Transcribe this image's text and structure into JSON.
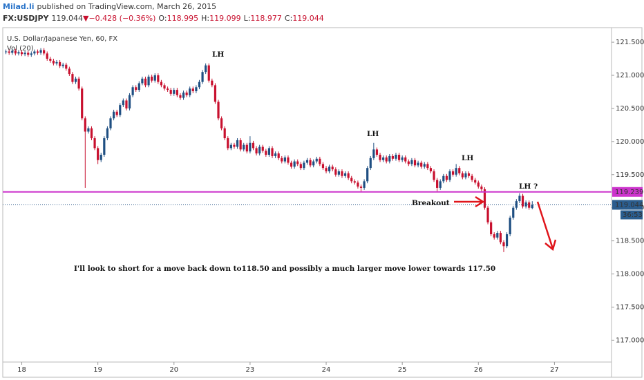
{
  "header": {
    "author": "Milad.li",
    "published": "published on TradingView.com, March 26, 2015",
    "symbol": "FX:USDJPY",
    "change": "−0.428 (−0.36%)",
    "ohlc_labels": [
      "O:",
      "H:",
      "L:",
      "C:"
    ]
  },
  "chart_data": {
    "type": "candlestick",
    "title": "U.S. Dollar/Japanese Yen, 60, FX",
    "volume_label": "Vol (20)",
    "up_color": "#1f4f82",
    "down_color": "#c8102e",
    "ylim": [
      116.67,
      121.72
    ],
    "yticks": [
      {
        "value": 117,
        "label": "117.000"
      },
      {
        "value": 117.5,
        "label": "117.500"
      },
      {
        "value": 118,
        "label": "118.000"
      },
      {
        "value": 118.5,
        "label": "118.500"
      },
      {
        "value": 119,
        "label": "119.000"
      },
      {
        "value": 119.5,
        "label": "119.500"
      },
      {
        "value": 120,
        "label": "120.000"
      },
      {
        "value": 120.5,
        "label": "120.500"
      },
      {
        "value": 121,
        "label": "121.000"
      },
      {
        "value": 121.5,
        "label": "121.500"
      }
    ],
    "xlim": [
      -1,
      191
    ],
    "xticks": [
      {
        "value": 5,
        "label": "18"
      },
      {
        "value": 29,
        "label": "19"
      },
      {
        "value": 53,
        "label": "20"
      },
      {
        "value": 77,
        "label": "23"
      },
      {
        "value": 101,
        "label": "24"
      },
      {
        "value": 125,
        "label": "25"
      },
      {
        "value": 149,
        "label": "26"
      },
      {
        "value": 173,
        "label": "27"
      }
    ],
    "levels": [
      {
        "value": 119.239,
        "color": "#cc33cc"
      }
    ],
    "timer": "36:53",
    "annotations": [
      "LH",
      "LH",
      "LH",
      "LH ?",
      "Breakout",
      "I'll look to short for a move back down to118.50 and possibly a much larger move lower towards 117.50"
    ],
    "candles": [
      [
        121.35,
        121.39,
        121.32,
        121.36
      ],
      [
        121.36,
        121.39,
        121.31,
        121.34
      ],
      [
        121.34,
        121.4,
        121.31,
        121.37
      ],
      [
        121.37,
        121.4,
        121.3,
        121.33
      ],
      [
        121.33,
        121.38,
        121.3,
        121.35
      ],
      [
        121.35,
        121.38,
        121.29,
        121.32
      ],
      [
        121.32,
        121.37,
        121.29,
        121.34
      ],
      [
        121.34,
        121.37,
        121.28,
        121.31
      ],
      [
        121.31,
        121.36,
        121.28,
        121.33
      ],
      [
        121.33,
        121.39,
        121.3,
        121.36
      ],
      [
        121.36,
        121.39,
        121.31,
        121.34
      ],
      [
        121.34,
        121.41,
        121.31,
        121.38
      ],
      [
        121.38,
        121.41,
        121.3,
        121.33
      ],
      [
        121.33,
        121.36,
        121.22,
        121.25
      ],
      [
        121.25,
        121.28,
        121.19,
        121.22
      ],
      [
        121.22,
        121.25,
        121.15,
        121.18
      ],
      [
        121.18,
        121.23,
        121.15,
        121.2
      ],
      [
        121.2,
        121.23,
        121.11,
        121.14
      ],
      [
        121.14,
        121.19,
        121.11,
        121.16
      ],
      [
        121.16,
        121.19,
        121.07,
        121.1
      ],
      [
        121.1,
        121.13,
        120.99,
        121.02
      ],
      [
        121.02,
        121.05,
        120.87,
        120.9
      ],
      [
        120.9,
        120.98,
        120.87,
        120.95
      ],
      [
        120.95,
        120.98,
        120.77,
        120.8
      ],
      [
        120.8,
        120.83,
        120.32,
        120.35
      ],
      [
        120.35,
        120.38,
        119.3,
        120.15
      ],
      [
        120.15,
        120.23,
        120.12,
        120.2
      ],
      [
        120.2,
        120.23,
        120.02,
        120.05
      ],
      [
        120.05,
        120.08,
        119.87,
        119.9
      ],
      [
        119.9,
        119.93,
        119.66,
        119.72
      ],
      [
        119.72,
        119.83,
        119.69,
        119.8
      ],
      [
        119.8,
        120.08,
        119.77,
        120.05
      ],
      [
        120.05,
        120.23,
        120.02,
        120.2
      ],
      [
        120.2,
        120.38,
        120.17,
        120.35
      ],
      [
        120.35,
        120.48,
        120.32,
        120.45
      ],
      [
        120.45,
        120.48,
        120.37,
        120.4
      ],
      [
        120.4,
        120.58,
        120.37,
        120.55
      ],
      [
        120.55,
        120.65,
        120.52,
        120.62
      ],
      [
        120.62,
        120.65,
        120.47,
        120.5
      ],
      [
        120.5,
        120.73,
        120.47,
        120.7
      ],
      [
        120.7,
        120.85,
        120.67,
        120.82
      ],
      [
        120.82,
        120.85,
        120.75,
        120.78
      ],
      [
        120.78,
        120.91,
        120.75,
        120.88
      ],
      [
        120.88,
        120.98,
        120.85,
        120.95
      ],
      [
        120.95,
        120.98,
        120.82,
        120.85
      ],
      [
        120.85,
        121.01,
        120.82,
        120.98
      ],
      [
        120.98,
        121.01,
        120.89,
        120.92
      ],
      [
        120.92,
        121.03,
        120.89,
        121.0
      ],
      [
        121.0,
        121.03,
        120.87,
        120.9
      ],
      [
        120.9,
        120.93,
        120.82,
        120.85
      ],
      [
        120.85,
        120.88,
        120.77,
        120.8
      ],
      [
        120.8,
        120.83,
        120.75,
        120.78
      ],
      [
        120.78,
        120.81,
        120.69,
        120.72
      ],
      [
        120.72,
        120.81,
        120.69,
        120.78
      ],
      [
        120.78,
        120.81,
        120.67,
        120.7
      ],
      [
        120.7,
        120.73,
        120.63,
        120.66
      ],
      [
        120.66,
        120.77,
        120.63,
        120.74
      ],
      [
        120.74,
        120.77,
        120.67,
        120.7
      ],
      [
        120.7,
        120.83,
        120.67,
        120.8
      ],
      [
        120.8,
        120.83,
        120.73,
        120.76
      ],
      [
        120.76,
        120.85,
        120.73,
        120.82
      ],
      [
        120.82,
        120.93,
        120.79,
        120.9
      ],
      [
        120.9,
        121.08,
        120.87,
        121.05
      ],
      [
        121.05,
        121.18,
        121.02,
        121.15
      ],
      [
        121.15,
        121.18,
        120.89,
        120.92
      ],
      [
        120.92,
        120.95,
        120.82,
        120.85
      ],
      [
        120.85,
        120.88,
        120.57,
        120.6
      ],
      [
        120.6,
        120.63,
        120.32,
        120.35
      ],
      [
        120.35,
        120.38,
        120.17,
        120.2
      ],
      [
        120.2,
        120.23,
        120.02,
        120.05
      ],
      [
        120.05,
        120.08,
        119.87,
        119.9
      ],
      [
        119.9,
        119.98,
        119.87,
        119.95
      ],
      [
        119.95,
        119.98,
        119.89,
        119.92
      ],
      [
        119.92,
        120.05,
        119.89,
        120.02
      ],
      [
        120.02,
        120.05,
        119.85,
        119.88
      ],
      [
        119.88,
        119.98,
        119.85,
        119.95
      ],
      [
        119.95,
        119.98,
        119.82,
        119.85
      ],
      [
        119.85,
        120.08,
        119.82,
        119.98
      ],
      [
        119.98,
        120.01,
        119.87,
        119.9
      ],
      [
        119.9,
        119.93,
        119.79,
        119.82
      ],
      [
        119.82,
        119.95,
        119.79,
        119.92
      ],
      [
        119.92,
        119.95,
        119.83,
        119.86
      ],
      [
        119.86,
        119.89,
        119.77,
        119.8
      ],
      [
        119.8,
        119.93,
        119.77,
        119.9
      ],
      [
        119.9,
        119.93,
        119.75,
        119.78
      ],
      [
        119.78,
        119.85,
        119.75,
        119.82
      ],
      [
        119.82,
        119.85,
        119.72,
        119.75
      ],
      [
        119.75,
        119.78,
        119.67,
        119.7
      ],
      [
        119.7,
        119.79,
        119.67,
        119.76
      ],
      [
        119.76,
        119.79,
        119.65,
        119.68
      ],
      [
        119.68,
        119.71,
        119.59,
        119.62
      ],
      [
        119.62,
        119.73,
        119.59,
        119.7
      ],
      [
        119.7,
        119.73,
        119.63,
        119.66
      ],
      [
        119.66,
        119.69,
        119.57,
        119.6
      ],
      [
        119.6,
        119.71,
        119.57,
        119.68
      ],
      [
        119.68,
        119.75,
        119.65,
        119.72
      ],
      [
        119.72,
        119.75,
        119.61,
        119.64
      ],
      [
        119.64,
        119.73,
        119.61,
        119.7
      ],
      [
        119.7,
        119.77,
        119.67,
        119.74
      ],
      [
        119.74,
        119.77,
        119.63,
        119.66
      ],
      [
        119.66,
        119.69,
        119.57,
        119.6
      ],
      [
        119.6,
        119.63,
        119.52,
        119.55
      ],
      [
        119.55,
        119.65,
        119.52,
        119.62
      ],
      [
        119.62,
        119.65,
        119.55,
        119.58
      ],
      [
        119.58,
        119.61,
        119.47,
        119.5
      ],
      [
        119.5,
        119.58,
        119.47,
        119.55
      ],
      [
        119.55,
        119.58,
        119.45,
        119.48
      ],
      [
        119.48,
        119.55,
        119.45,
        119.52
      ],
      [
        119.52,
        119.55,
        119.42,
        119.45
      ],
      [
        119.45,
        119.48,
        119.37,
        119.4
      ],
      [
        119.4,
        119.43,
        119.35,
        119.38
      ],
      [
        119.38,
        119.41,
        119.29,
        119.32
      ],
      [
        119.32,
        119.35,
        119.24,
        119.3
      ],
      [
        119.3,
        119.43,
        119.27,
        119.4
      ],
      [
        119.4,
        119.63,
        119.37,
        119.6
      ],
      [
        119.6,
        119.78,
        119.57,
        119.75
      ],
      [
        119.75,
        119.98,
        119.72,
        119.88
      ],
      [
        119.88,
        119.91,
        119.77,
        119.8
      ],
      [
        119.8,
        119.83,
        119.69,
        119.72
      ],
      [
        119.72,
        119.79,
        119.69,
        119.76
      ],
      [
        119.76,
        119.79,
        119.67,
        119.7
      ],
      [
        119.7,
        119.81,
        119.67,
        119.78
      ],
      [
        119.78,
        119.81,
        119.71,
        119.74
      ],
      [
        119.74,
        119.83,
        119.71,
        119.8
      ],
      [
        119.8,
        119.83,
        119.69,
        119.72
      ],
      [
        119.72,
        119.79,
        119.69,
        119.76
      ],
      [
        119.76,
        119.79,
        119.67,
        119.7
      ],
      [
        119.7,
        119.73,
        119.63,
        119.66
      ],
      [
        119.66,
        119.75,
        119.63,
        119.72
      ],
      [
        119.72,
        119.75,
        119.61,
        119.64
      ],
      [
        119.64,
        119.71,
        119.61,
        119.68
      ],
      [
        119.68,
        119.71,
        119.59,
        119.62
      ],
      [
        119.62,
        119.69,
        119.59,
        119.66
      ],
      [
        119.66,
        119.69,
        119.57,
        119.6
      ],
      [
        119.6,
        119.63,
        119.52,
        119.55
      ],
      [
        119.55,
        119.58,
        119.39,
        119.42
      ],
      [
        119.42,
        119.45,
        119.25,
        119.3
      ],
      [
        119.3,
        119.43,
        119.27,
        119.4
      ],
      [
        119.4,
        119.51,
        119.37,
        119.48
      ],
      [
        119.48,
        119.51,
        119.39,
        119.42
      ],
      [
        119.42,
        119.58,
        119.39,
        119.55
      ],
      [
        119.55,
        119.58,
        119.47,
        119.5
      ],
      [
        119.5,
        119.66,
        119.47,
        119.6
      ],
      [
        119.6,
        119.63,
        119.49,
        119.52
      ],
      [
        119.52,
        119.55,
        119.43,
        119.46
      ],
      [
        119.46,
        119.55,
        119.43,
        119.52
      ],
      [
        119.52,
        119.55,
        119.45,
        119.48
      ],
      [
        119.48,
        119.51,
        119.39,
        119.42
      ],
      [
        119.42,
        119.45,
        119.35,
        119.38
      ],
      [
        119.38,
        119.41,
        119.29,
        119.32
      ],
      [
        119.32,
        119.35,
        119.25,
        119.28
      ],
      [
        119.28,
        119.31,
        118.97,
        119.0
      ],
      [
        119.0,
        119.03,
        118.75,
        118.78
      ],
      [
        118.78,
        118.81,
        118.57,
        118.6
      ],
      [
        118.6,
        118.63,
        118.52,
        118.55
      ],
      [
        118.55,
        118.65,
        118.52,
        118.62
      ],
      [
        118.62,
        118.65,
        118.45,
        118.48
      ],
      [
        118.48,
        118.51,
        118.33,
        118.42
      ],
      [
        118.42,
        118.63,
        118.39,
        118.6
      ],
      [
        118.6,
        118.88,
        118.57,
        118.85
      ],
      [
        118.85,
        119.03,
        118.82,
        119.0
      ],
      [
        119.0,
        119.13,
        118.97,
        119.1
      ],
      [
        119.1,
        119.22,
        119.07,
        119.18
      ],
      [
        119.18,
        119.21,
        118.99,
        119.02
      ],
      [
        119.02,
        119.11,
        118.99,
        119.08
      ],
      [
        119.08,
        119.11,
        118.97,
        119.0
      ],
      [
        118.995,
        119.099,
        118.977,
        119.044
      ]
    ]
  }
}
